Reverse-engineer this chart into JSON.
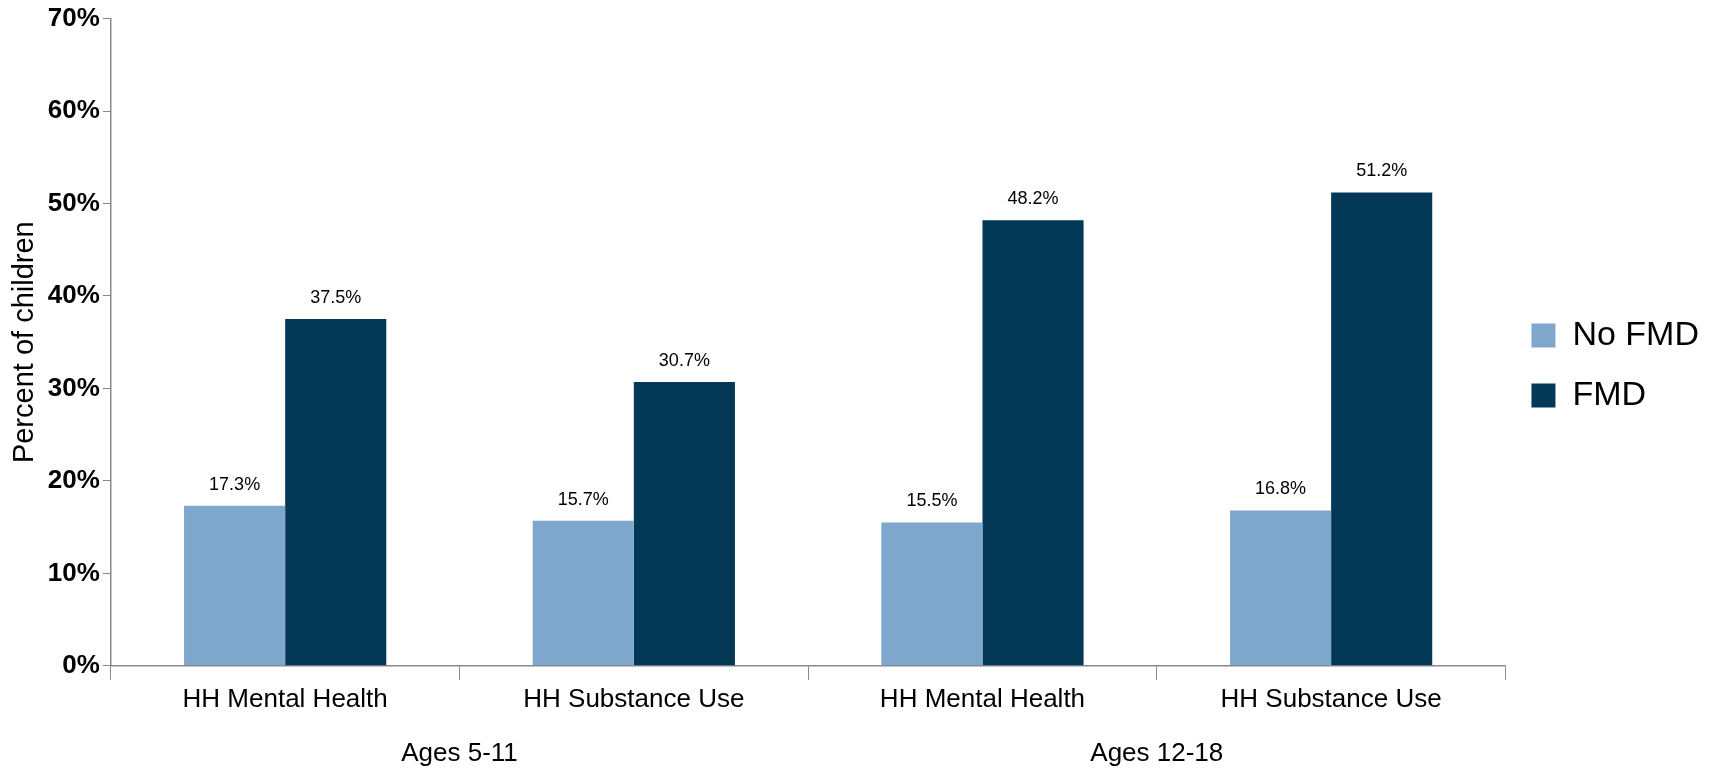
{
  "chart_data": {
    "type": "bar",
    "ylabel": "Percent of children",
    "categories": [
      "HH Mental Health",
      "HH Substance Use",
      "HH Mental Health",
      "HH Substance Use"
    ],
    "series": [
      {
        "name": "No FMD",
        "color": "#7fa6cc",
        "values": [
          17.3,
          15.7,
          15.5,
          16.8
        ],
        "value_labels": [
          "17.3%",
          "15.7%",
          "15.5%",
          "16.8%"
        ]
      },
      {
        "name": "FMD",
        "color": "#033856",
        "values": [
          37.5,
          30.7,
          48.2,
          51.2
        ],
        "value_labels": [
          "37.5%",
          "30.7%",
          "48.2%",
          "51.2%"
        ]
      }
    ],
    "ylim": [
      0,
      70
    ],
    "yticks": [
      {
        "value": 0,
        "label": "0%"
      },
      {
        "value": 10,
        "label": "10%"
      },
      {
        "value": 20,
        "label": "20%"
      },
      {
        "value": 30,
        "label": "30%"
      },
      {
        "value": 40,
        "label": "40%"
      },
      {
        "value": 50,
        "label": "50%"
      },
      {
        "value": 60,
        "label": "60%"
      },
      {
        "value": 70,
        "label": "70%"
      }
    ],
    "annotations": [
      "Ages 5-11",
      "Ages 12-18"
    ],
    "grid": false,
    "legend": "right"
  }
}
